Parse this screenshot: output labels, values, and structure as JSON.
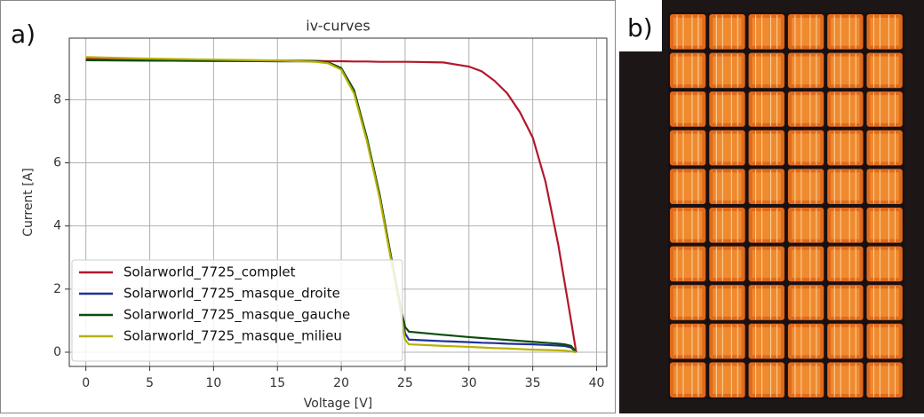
{
  "panels": [
    "a)",
    "b)"
  ],
  "chart_data": {
    "type": "line",
    "title": "iv-curves",
    "x_label": "Voltage [V]",
    "y_label": "Current [A]",
    "x": [
      0,
      5,
      10,
      15,
      18,
      19,
      20,
      21,
      22,
      23,
      24,
      24.6,
      25,
      25.3,
      28,
      30,
      31,
      32,
      33,
      34,
      35,
      36,
      37,
      37.5,
      38,
      38.4
    ],
    "series": [
      {
        "name": "Solarworld_7725_complet",
        "color": "#b2182b",
        "values": [
          9.3,
          9.28,
          9.26,
          9.24,
          9.23,
          9.22,
          9.22,
          9.21,
          9.21,
          9.2,
          9.2,
          9.2,
          9.2,
          9.2,
          9.18,
          9.05,
          8.9,
          8.6,
          8.2,
          7.6,
          6.8,
          5.4,
          3.4,
          2.2,
          1.0,
          0
        ]
      },
      {
        "name": "Solarworld_7725_masque_droite",
        "color": "#1f2f9a",
        "values": [
          9.25,
          9.24,
          9.23,
          9.22,
          9.22,
          9.18,
          9.0,
          8.3,
          6.8,
          5.0,
          2.8,
          1.5,
          0.6,
          0.4,
          0.35,
          0.32,
          0.3,
          0.29,
          0.27,
          0.26,
          0.25,
          0.23,
          0.21,
          0.2,
          0.15,
          0
        ]
      },
      {
        "name": "Solarworld_7725_masque_gauche",
        "color": "#0b4d0b",
        "values": [
          9.25,
          9.24,
          9.23,
          9.22,
          9.22,
          9.18,
          9.0,
          8.3,
          6.8,
          5.0,
          2.8,
          1.5,
          0.8,
          0.65,
          0.55,
          0.48,
          0.45,
          0.42,
          0.39,
          0.36,
          0.33,
          0.3,
          0.27,
          0.25,
          0.2,
          0
        ]
      },
      {
        "name": "Solarworld_7725_masque_milieu",
        "color": "#b8b000",
        "values": [
          9.35,
          9.3,
          9.27,
          9.24,
          9.2,
          9.15,
          8.95,
          8.2,
          6.7,
          4.9,
          2.7,
          1.4,
          0.4,
          0.25,
          0.2,
          0.17,
          0.15,
          0.13,
          0.12,
          0.1,
          0.08,
          0.07,
          0.06,
          0.05,
          0.03,
          0
        ]
      }
    ],
    "xlim": [
      -1.3,
      40.8
    ],
    "xticks": [
      0,
      5,
      10,
      15,
      20,
      25,
      30,
      35,
      40
    ],
    "ylim": [
      -0.45,
      9.95
    ],
    "yticks": [
      0,
      2,
      4,
      6,
      8
    ],
    "grid": true,
    "legend": "lower left"
  }
}
